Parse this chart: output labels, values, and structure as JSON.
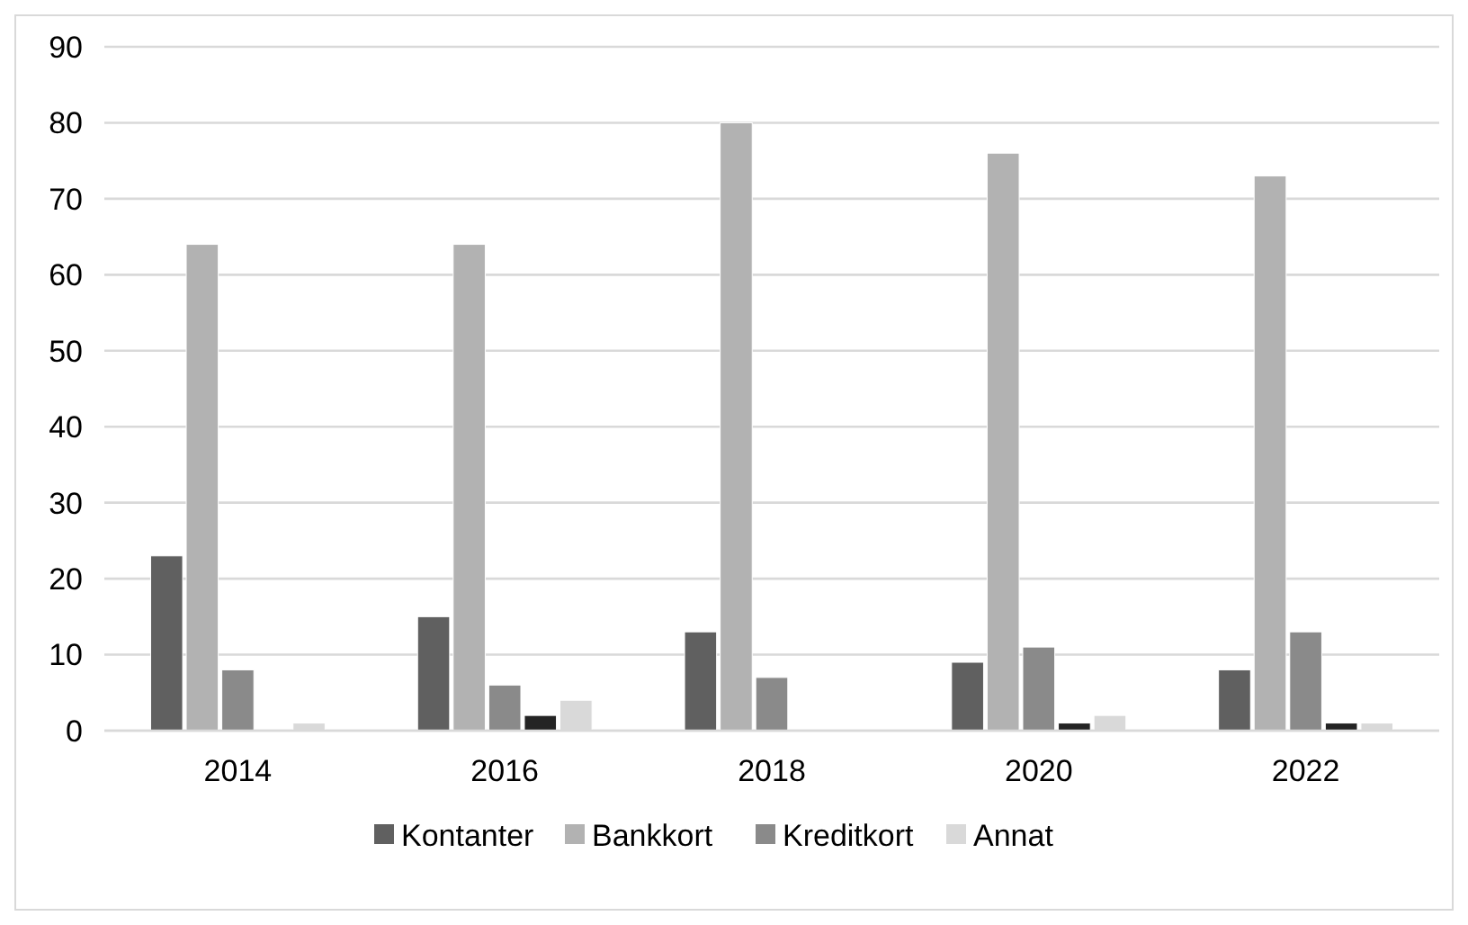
{
  "chart_data": {
    "type": "bar",
    "categories": [
      "2014",
      "2016",
      "2018",
      "2020",
      "2022"
    ],
    "series": [
      {
        "name": "Kontanter",
        "color": "#606060",
        "values": [
          23,
          15,
          13,
          9,
          8
        ]
      },
      {
        "name": "Bankkort",
        "color": "#b2b2b2",
        "values": [
          64,
          64,
          80,
          76,
          73
        ]
      },
      {
        "name": "Kreditkort",
        "color": "#8a8a8a",
        "values": [
          8,
          6,
          7,
          11,
          13
        ]
      },
      {
        "color": "#242424",
        "values": [
          0,
          2,
          0,
          1,
          1
        ]
      },
      {
        "name": "Annat",
        "color": "#d9d9d9",
        "values": [
          1,
          4,
          0,
          2,
          1
        ]
      }
    ],
    "ylim": [
      0,
      90
    ],
    "yticks": [
      0,
      10,
      20,
      30,
      40,
      50,
      60,
      70,
      80,
      90
    ],
    "grid": "y",
    "legend": "bottom"
  }
}
